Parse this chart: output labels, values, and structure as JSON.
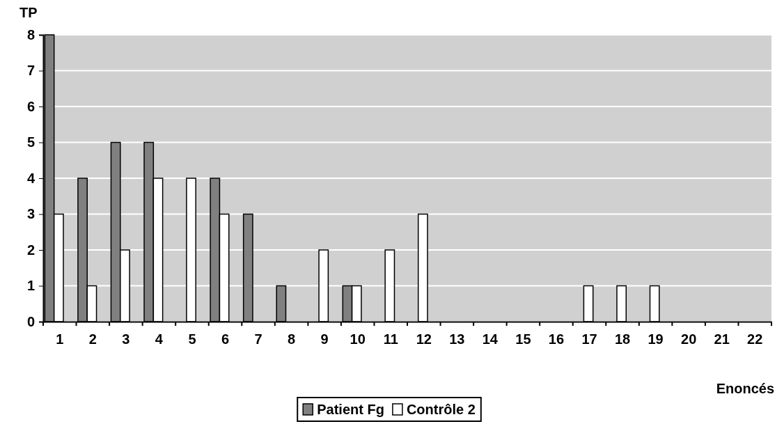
{
  "chart_data": {
    "type": "bar",
    "xlabel": "Enoncés",
    "ylabel": "TP",
    "categories": [
      "1",
      "2",
      "3",
      "4",
      "5",
      "6",
      "7",
      "8",
      "9",
      "10",
      "11",
      "12",
      "13",
      "14",
      "15",
      "16",
      "17",
      "18",
      "19",
      "20",
      "21",
      "22"
    ],
    "series": [
      {
        "name": "Patient Fg",
        "color": "#808080",
        "values": [
          8,
          4,
          5,
          5,
          0,
          4,
          3,
          1,
          0,
          1,
          0,
          0,
          0,
          0,
          0,
          0,
          0,
          0,
          0,
          0,
          0,
          0
        ]
      },
      {
        "name": "Contrôle 2",
        "color": "#ffffff",
        "values": [
          3,
          1,
          2,
          4,
          4,
          3,
          0,
          0,
          2,
          1,
          2,
          3,
          0,
          0,
          0,
          0,
          1,
          1,
          1,
          0,
          0,
          0
        ]
      }
    ],
    "ylim": [
      0,
      8
    ],
    "yticks": [
      0,
      1,
      2,
      3,
      4,
      5,
      6,
      7,
      8
    ],
    "grid": "y",
    "legend": "bottom"
  }
}
